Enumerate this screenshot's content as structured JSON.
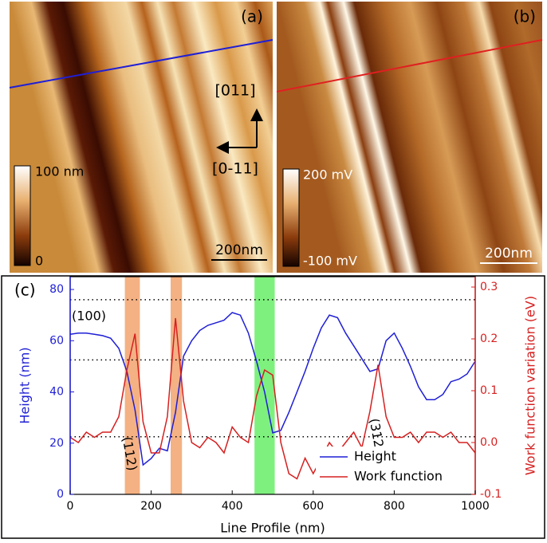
{
  "panels": [
    {
      "label": "(a)",
      "directions": [
        "[011]",
        "[0-11]"
      ],
      "colorbar": [
        "100 nm",
        "0"
      ],
      "scale_bar": "200nm"
    },
    {
      "label": "(b)",
      "colorbar": [
        "200 mV",
        "-100 mV"
      ],
      "scale_bar": "200nm"
    }
  ],
  "chart_data": {
    "type": "line",
    "panel_label": "(c)",
    "xlabel": "Line Profile (nm)",
    "ylabel": "Height (nm)",
    "y2label": "Work function variation (eV)",
    "x": [
      0,
      20,
      40,
      60,
      80,
      100,
      120,
      140,
      160,
      180,
      200,
      220,
      240,
      260,
      280,
      300,
      320,
      340,
      360,
      380,
      400,
      420,
      440,
      460,
      480,
      500,
      520,
      540,
      560,
      580,
      600,
      620,
      640,
      660,
      680,
      700,
      720,
      740,
      760,
      780,
      800,
      820,
      840,
      860,
      880,
      900,
      920,
      940,
      960,
      980,
      1000
    ],
    "series": [
      {
        "name": "Height",
        "color": "#1f1fd6",
        "values": [
          62.5,
          63,
          63,
          62.5,
          62,
          61,
          57,
          48,
          33,
          11.5,
          14,
          18,
          17,
          32,
          54,
          60,
          64,
          66,
          67,
          68,
          71,
          70,
          63,
          52,
          40,
          24,
          25,
          32,
          40,
          48,
          57,
          65,
          70,
          69,
          63,
          58,
          53,
          48,
          49,
          60,
          63,
          57,
          50,
          42,
          37,
          37,
          39,
          44,
          45,
          47,
          52
        ]
      },
      {
        "name": "Work function",
        "color": "#d62020",
        "axis": "y2",
        "values": [
          0.01,
          0.0,
          0.02,
          0.01,
          0.02,
          0.02,
          0.05,
          0.14,
          0.21,
          0.04,
          -0.02,
          -0.02,
          0.05,
          0.24,
          0.08,
          0.0,
          -0.01,
          0.01,
          0.0,
          -0.02,
          0.03,
          0.01,
          0.0,
          0.09,
          0.14,
          0.13,
          0.0,
          -0.06,
          -0.07,
          -0.03,
          -0.06,
          -0.03,
          0.0,
          -0.02,
          0.0,
          0.02,
          -0.01,
          0.06,
          0.15,
          0.05,
          0.01,
          0.01,
          0.02,
          0.0,
          0.02,
          0.02,
          0.01,
          0.02,
          0.0,
          0.0,
          -0.02
        ]
      }
    ],
    "xlim": [
      0,
      1000
    ],
    "xticks": [
      0,
      200,
      400,
      600,
      800,
      1000
    ],
    "ylim": [
      0,
      85
    ],
    "yticks": [
      0,
      20,
      40,
      60,
      80
    ],
    "y2lim": [
      -0.1,
      0.32
    ],
    "y2ticks": [
      -0.1,
      {
        "value": 0,
        "label": "0.0"
      },
      0.1,
      0.2,
      0.3
    ],
    "hlines": [
      76,
      52.5,
      22.5
    ],
    "highlights": [
      {
        "xlim": [
          135,
          172
        ],
        "color": "#f4b183"
      },
      {
        "xlim": [
          248,
          276
        ],
        "color": "#f4b183"
      },
      {
        "xlim": [
          455,
          505
        ],
        "color": "#7ef07e"
      }
    ],
    "annotations": [
      "(100)",
      "(112)",
      "(312)"
    ],
    "legend": "lower right"
  }
}
